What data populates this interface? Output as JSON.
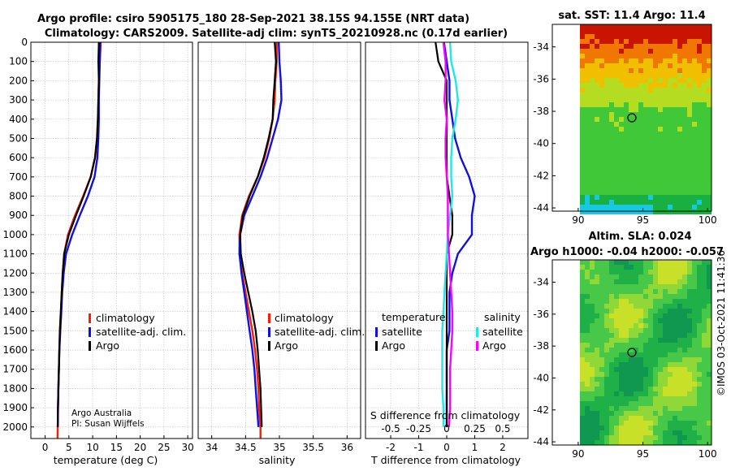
{
  "titles": {
    "line1": "Argo profile: csiro 5905175_180 28-Sep-2021 38.15S 94.155E (NRT data)",
    "line2": "Climatology: CARS2009. Satellite-adj clim: synTS_20210928.nc (0.17d earlier)",
    "sst": "sat. SST: 11.4 Argo: 11.4",
    "sla1": "Altim. SLA: 0.024",
    "sla2": "Argo h1000: -0.04 h2000: -0.057"
  },
  "colors": {
    "climatology": "#ff1a00",
    "satellite": "#1010e0",
    "argo": "#000000",
    "sat_salinity": "#20e8e8",
    "argo_salinity": "#ff00ff"
  },
  "credits": {
    "line1": "Argo Australia",
    "line2": "PI: Susan Wijffels"
  },
  "watermark": "©IMOS 03-Oct-2021 11:41:36",
  "chart_data": [
    {
      "type": "line",
      "title": "temperature profile",
      "xlabel": "temperature (deg C)",
      "ylabel": "",
      "xlim": [
        -3,
        31
      ],
      "ylim": [
        2060,
        0
      ],
      "xticks": [
        0,
        5,
        10,
        15,
        20,
        25,
        30
      ],
      "yticks": [
        0,
        100,
        200,
        300,
        400,
        500,
        600,
        700,
        800,
        900,
        1000,
        1100,
        1200,
        1300,
        1400,
        1500,
        1600,
        1700,
        1800,
        1900,
        2000
      ],
      "legend": [
        "climatology",
        "satellite-adj. clim.",
        "Argo"
      ],
      "series": [
        {
          "name": "climatology",
          "color": "climatology",
          "depth": [
            0,
            100,
            200,
            300,
            400,
            500,
            600,
            700,
            800,
            900,
            1000,
            1100,
            1200,
            1300,
            1400,
            1500,
            1600,
            1700,
            1800,
            1900,
            2000,
            2060
          ],
          "values": [
            11.7,
            11.5,
            11.3,
            11.2,
            11.1,
            10.9,
            10.5,
            9.6,
            8.0,
            6.3,
            4.8,
            4.0,
            3.7,
            3.5,
            3.3,
            3.1,
            3.0,
            2.9,
            2.8,
            2.7,
            2.65,
            2.6
          ]
        },
        {
          "name": "satellite-adj. clim.",
          "color": "satellite",
          "depth": [
            0,
            100,
            200,
            300,
            400,
            500,
            600,
            700,
            800,
            900,
            1000,
            1100,
            1200,
            1300,
            1400,
            1500,
            1600,
            1700,
            1800,
            1900,
            2000
          ],
          "values": [
            11.6,
            11.5,
            11.4,
            11.3,
            11.3,
            11.2,
            11.0,
            10.4,
            9.0,
            7.3,
            5.7,
            4.4,
            3.9,
            3.6,
            3.4,
            3.2,
            3.0,
            2.9,
            2.8,
            2.7,
            2.65
          ]
        },
        {
          "name": "Argo",
          "color": "argo",
          "depth": [
            0,
            100,
            200,
            300,
            400,
            500,
            600,
            700,
            800,
            900,
            1000,
            1100,
            1200,
            1300,
            1400,
            1500,
            1600,
            1700,
            1800,
            1900,
            2000
          ],
          "values": [
            11.3,
            11.2,
            11.3,
            11.2,
            11.1,
            10.9,
            10.5,
            9.6,
            8.1,
            6.5,
            5.0,
            4.0,
            3.7,
            3.5,
            3.3,
            3.1,
            3.0,
            2.9,
            2.8,
            2.7,
            2.65
          ]
        }
      ]
    },
    {
      "type": "line",
      "title": "salinity profile",
      "xlabel": "salinity",
      "xlim": [
        33.8,
        36.2
      ],
      "ylim": [
        2060,
        0
      ],
      "xticks": [
        34,
        34.5,
        35,
        35.5,
        36
      ],
      "xticklabels": [
        "34",
        "34.5",
        "35",
        "35.5",
        "36"
      ],
      "legend": [
        "climatology",
        "satellite-adj. clim.",
        "Argo"
      ],
      "series": [
        {
          "name": "climatology",
          "color": "climatology",
          "depth": [
            0,
            100,
            200,
            300,
            400,
            500,
            600,
            700,
            800,
            900,
            1000,
            1100,
            1200,
            1300,
            1400,
            1500,
            1600,
            1700,
            1800,
            1900,
            2000,
            2060
          ],
          "values": [
            34.96,
            34.96,
            34.94,
            34.93,
            34.9,
            34.85,
            34.78,
            34.68,
            34.55,
            34.45,
            34.41,
            34.41,
            34.45,
            34.5,
            34.55,
            34.6,
            34.64,
            34.67,
            34.69,
            34.7,
            34.72,
            34.72
          ]
        },
        {
          "name": "satellite-adj. clim.",
          "color": "satellite",
          "depth": [
            0,
            100,
            200,
            300,
            400,
            500,
            600,
            700,
            800,
            900,
            1000,
            1100,
            1200,
            1300,
            1400,
            1500,
            1600,
            1700,
            1800,
            1900,
            2000
          ],
          "values": [
            34.99,
            35.0,
            35.02,
            35.03,
            34.98,
            34.9,
            34.82,
            34.72,
            34.6,
            34.48,
            34.42,
            34.41,
            34.44,
            34.48,
            34.52,
            34.56,
            34.6,
            34.63,
            34.65,
            34.67,
            34.69
          ]
        },
        {
          "name": "Argo",
          "color": "argo",
          "depth": [
            0,
            100,
            200,
            300,
            400,
            500,
            600,
            700,
            800,
            900,
            1000,
            1100,
            1200,
            1300,
            1400,
            1500,
            1600,
            1700,
            1800,
            1900,
            2000
          ],
          "values": [
            34.93,
            34.95,
            34.93,
            34.91,
            34.9,
            34.84,
            34.77,
            34.68,
            34.56,
            34.46,
            34.42,
            34.43,
            34.48,
            34.54,
            34.6,
            34.65,
            34.68,
            34.7,
            34.72,
            34.73,
            34.74
          ]
        }
      ]
    },
    {
      "type": "line",
      "title": "difference from climatology",
      "xlabel": "T difference from climatology",
      "xlabel2": "S difference from climatology",
      "xlim": [
        -2.9,
        2.9
      ],
      "ylim": [
        2060,
        0
      ],
      "xticks": [
        -2,
        -1,
        0,
        1,
        2
      ],
      "xticks2": [
        -0.5,
        -0.25,
        0,
        0.25,
        0.5
      ],
      "xticklabels2": [
        "-0.5",
        "-0.25",
        "0",
        "0.25",
        "0.5"
      ],
      "legend_temperature_title": "temperature",
      "legend_salinity_title": "salinity",
      "legend_temperature": [
        "satellite",
        "Argo"
      ],
      "legend_salinity": [
        "satellite",
        "Argo"
      ],
      "series": [
        {
          "name": "T satellite",
          "color": "satellite",
          "depth": [
            0,
            100,
            200,
            300,
            400,
            500,
            600,
            700,
            800,
            900,
            1000,
            1100,
            1200,
            1300,
            1400,
            1500,
            1600,
            1700,
            1800,
            1900,
            2000
          ],
          "values": [
            -0.1,
            0.0,
            0.1,
            0.1,
            0.2,
            0.3,
            0.5,
            0.8,
            1.0,
            0.9,
            0.9,
            0.4,
            0.2,
            0.1,
            0.1,
            0.1,
            0.0,
            0.0,
            0.0,
            0.0,
            0.0
          ]
        },
        {
          "name": "T Argo",
          "color": "argo",
          "depth": [
            0,
            100,
            200,
            300,
            400,
            500,
            600,
            700,
            800,
            900,
            1000,
            1100,
            1200,
            1300,
            1400,
            1500,
            1600,
            1700,
            1800,
            1900,
            2000
          ],
          "values": [
            -0.4,
            -0.3,
            0.0,
            0.0,
            0.0,
            0.0,
            0.0,
            0.0,
            0.1,
            0.2,
            0.2,
            0.0,
            0.0,
            0.0,
            0.0,
            0.0,
            0.0,
            0.0,
            0.0,
            0.0,
            0.0
          ]
        },
        {
          "name": "S satellite",
          "color": "sat_salinity",
          "depth": [
            0,
            100,
            200,
            300,
            400,
            500,
            600,
            700,
            800,
            900,
            1000,
            1100,
            1200,
            1300,
            1400,
            1500,
            1600,
            1700,
            1800,
            1900,
            2000
          ],
          "values": [
            0.03,
            0.04,
            0.08,
            0.1,
            0.08,
            0.05,
            0.04,
            0.04,
            0.05,
            0.03,
            0.01,
            0.0,
            -0.01,
            -0.02,
            -0.03,
            -0.04,
            -0.04,
            -0.04,
            -0.04,
            -0.03,
            -0.03
          ]
        },
        {
          "name": "S Argo",
          "color": "argo_salinity",
          "depth": [
            0,
            100,
            200,
            300,
            400,
            500,
            600,
            700,
            800,
            900,
            1000,
            1100,
            1200,
            1300,
            1400,
            1500,
            1600,
            1700,
            1800,
            1900,
            2000
          ],
          "values": [
            -0.03,
            -0.01,
            -0.01,
            -0.02,
            0.0,
            -0.01,
            -0.01,
            0.0,
            0.01,
            0.01,
            0.01,
            0.02,
            0.03,
            0.04,
            0.05,
            0.05,
            0.04,
            0.03,
            0.03,
            0.03,
            0.02
          ]
        }
      ]
    },
    {
      "type": "heatmap",
      "title": "sat. SST: 11.4 Argo: 11.4",
      "xlim": [
        88,
        100.3
      ],
      "ylim": [
        -44.2,
        -32.6
      ],
      "xticks": [
        90,
        95,
        100
      ],
      "yticks": [
        -34,
        -36,
        -38,
        -40,
        -42,
        -44
      ],
      "marker": {
        "lon": 94.155,
        "lat": -38.15
      }
    },
    {
      "type": "heatmap",
      "title": "Altim. SLA: 0.024",
      "xlim": [
        88,
        100.3
      ],
      "ylim": [
        -44.2,
        -32.6
      ],
      "xticks": [
        90,
        95,
        100
      ],
      "yticks": [
        -34,
        -36,
        -38,
        -40,
        -42,
        -44
      ],
      "marker": {
        "lon": 94.155,
        "lat": -38.15
      }
    }
  ]
}
